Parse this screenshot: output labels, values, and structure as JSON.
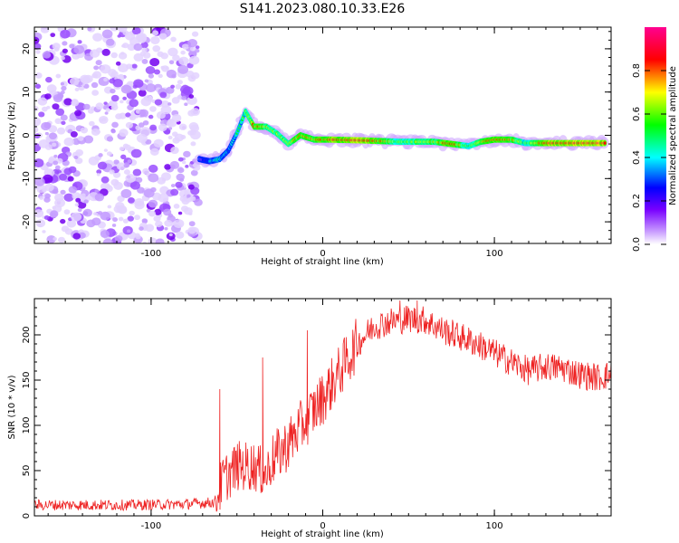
{
  "chart_data": [
    {
      "type": "heatmap",
      "title": "S141.2023.080.10.33.E26",
      "xlabel": "Height of straight line (km)",
      "ylabel": "Frequency (Hz)",
      "xlim": [
        -168,
        168
      ],
      "ylim": [
        -25,
        25
      ],
      "xticks": [
        -100,
        0,
        100
      ],
      "yticks": [
        -20,
        -10,
        0,
        10,
        20
      ],
      "colorbar": {
        "label": "Normalized spectral amplitude",
        "range": [
          0,
          1
        ],
        "ticks": [
          "0.0",
          "0.2",
          "0.4",
          "0.6",
          "0.8"
        ],
        "tick_values": [
          0,
          0.2,
          0.4,
          0.6,
          0.8
        ],
        "colors": [
          "#ffffff",
          "#a000ff",
          "#0000ff",
          "#00ffff",
          "#00ff00",
          "#ffff00",
          "#ff0000",
          "#ff0090"
        ]
      },
      "noise_region_x": [
        -168,
        -72
      ],
      "signal_track": [
        {
          "x": -72,
          "y": -5.5,
          "v": 0.1
        },
        {
          "x": -66,
          "y": -6.0,
          "v": 0.35
        },
        {
          "x": -60,
          "y": -5.5,
          "v": 0.45
        },
        {
          "x": -55,
          "y": -3.5,
          "v": 0.35
        },
        {
          "x": -50,
          "y": 0.5,
          "v": 0.45
        },
        {
          "x": -45,
          "y": 5.5,
          "v": 0.55
        },
        {
          "x": -40,
          "y": 2.0,
          "v": 0.8
        },
        {
          "x": -33,
          "y": 2.0,
          "v": 0.7
        },
        {
          "x": -27,
          "y": 0.5,
          "v": 0.65
        },
        {
          "x": -20,
          "y": -2.0,
          "v": 0.6
        },
        {
          "x": -13,
          "y": 0.0,
          "v": 0.8
        },
        {
          "x": -5,
          "y": -1.0,
          "v": 0.75
        },
        {
          "x": 5,
          "y": -1.0,
          "v": 0.85
        },
        {
          "x": 25,
          "y": -1.2,
          "v": 0.9
        },
        {
          "x": 45,
          "y": -1.5,
          "v": 0.6
        },
        {
          "x": 65,
          "y": -1.5,
          "v": 0.7
        },
        {
          "x": 75,
          "y": -2.0,
          "v": 0.85
        },
        {
          "x": 85,
          "y": -2.5,
          "v": 0.55
        },
        {
          "x": 92,
          "y": -1.5,
          "v": 0.7
        },
        {
          "x": 100,
          "y": -1.0,
          "v": 0.85
        },
        {
          "x": 110,
          "y": -1.0,
          "v": 0.75
        },
        {
          "x": 118,
          "y": -1.8,
          "v": 0.55
        },
        {
          "x": 130,
          "y": -1.8,
          "v": 0.88
        },
        {
          "x": 150,
          "y": -1.8,
          "v": 0.92
        },
        {
          "x": 165,
          "y": -1.8,
          "v": 0.9
        }
      ]
    },
    {
      "type": "line",
      "xlabel": "Height of straight line (km)",
      "ylabel": "SNR (10 * v/v)",
      "xlim": [
        -168,
        168
      ],
      "ylim": [
        0,
        240
      ],
      "xticks": [
        -100,
        0,
        100
      ],
      "yticks": [
        0,
        50,
        100,
        150,
        200
      ],
      "color": "#ee2222",
      "envelope": [
        {
          "x": -168,
          "y": 12
        },
        {
          "x": -140,
          "y": 12
        },
        {
          "x": -110,
          "y": 12
        },
        {
          "x": -80,
          "y": 13
        },
        {
          "x": -63,
          "y": 15
        },
        {
          "x": -58,
          "y": 40
        },
        {
          "x": -50,
          "y": 55
        },
        {
          "x": -40,
          "y": 55
        },
        {
          "x": -33,
          "y": 45
        },
        {
          "x": -30,
          "y": 60
        },
        {
          "x": -20,
          "y": 80
        },
        {
          "x": -10,
          "y": 105
        },
        {
          "x": 0,
          "y": 130
        },
        {
          "x": 10,
          "y": 160
        },
        {
          "x": 20,
          "y": 190
        },
        {
          "x": 30,
          "y": 210
        },
        {
          "x": 40,
          "y": 215
        },
        {
          "x": 50,
          "y": 218
        },
        {
          "x": 60,
          "y": 216
        },
        {
          "x": 70,
          "y": 205
        },
        {
          "x": 80,
          "y": 198
        },
        {
          "x": 90,
          "y": 190
        },
        {
          "x": 100,
          "y": 180
        },
        {
          "x": 110,
          "y": 170
        },
        {
          "x": 120,
          "y": 160
        },
        {
          "x": 130,
          "y": 165
        },
        {
          "x": 140,
          "y": 163
        },
        {
          "x": 150,
          "y": 156
        },
        {
          "x": 160,
          "y": 153
        },
        {
          "x": 168,
          "y": 156
        }
      ],
      "peaks": [
        {
          "x": -60,
          "y": 140
        },
        {
          "x": -35,
          "y": 175
        },
        {
          "x": -9,
          "y": 205
        },
        {
          "x": 45,
          "y": 238
        },
        {
          "x": 55,
          "y": 238
        }
      ]
    }
  ]
}
